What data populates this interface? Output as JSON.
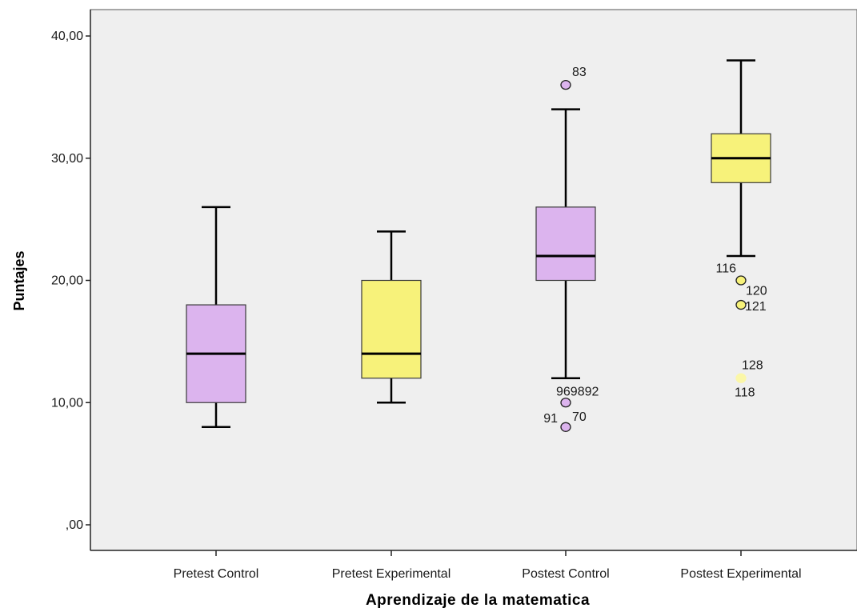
{
  "chart_data": {
    "type": "boxplot",
    "xlabel": "Aprendizaje de la matematica",
    "ylabel": "Puntajes",
    "ylim": [
      0,
      40
    ],
    "y_ticks": [
      {
        "value": 0,
        "label": ",00"
      },
      {
        "value": 10,
        "label": "10,00"
      },
      {
        "value": 20,
        "label": "20,00"
      },
      {
        "value": 30,
        "label": "30,00"
      },
      {
        "value": 40,
        "label": "40,00"
      }
    ],
    "grid": false,
    "plot_background": "#efefef",
    "categories": [
      "Pretest Control",
      "Pretest Experimental",
      "Postest Control",
      "Postest Experimental"
    ],
    "boxes": [
      {
        "category": "Pretest Control",
        "color": "#dcb4ee",
        "whisker_low": 8,
        "q1": 10,
        "median": 14,
        "q3": 18,
        "whisker_high": 26,
        "outliers": []
      },
      {
        "category": "Pretest Experimental",
        "color": "#f7f27a",
        "whisker_low": 10,
        "q1": 12,
        "median": 14,
        "q3": 20,
        "whisker_high": 24,
        "outliers": []
      },
      {
        "category": "Postest Control",
        "color": "#dcb4ee",
        "whisker_low": 12,
        "q1": 20,
        "median": 22,
        "q3": 26,
        "whisker_high": 34,
        "outliers": [
          {
            "value": 36,
            "label": "83",
            "label_pos": "above-right"
          },
          {
            "value": 10,
            "label": "969892",
            "label_pos": "above-right"
          },
          {
            "value": 8,
            "label": "91",
            "label_pos": "left"
          },
          {
            "value": 8,
            "label": "70",
            "label_pos": "above-right"
          }
        ]
      },
      {
        "category": "Postest Experimental",
        "color": "#f7f27a",
        "whisker_low": 22,
        "q1": 28,
        "median": 30,
        "q3": 32,
        "whisker_high": 38,
        "outliers": [
          {
            "value": 20,
            "label": "116",
            "label_pos": "above-left"
          },
          {
            "value": 20,
            "label": "120",
            "label_pos": "below-right"
          },
          {
            "value": 18,
            "label": "121",
            "label_pos": "right"
          },
          {
            "value": 12,
            "label": "128",
            "label_pos": "above-right"
          },
          {
            "value": 12,
            "label": "118",
            "label_pos": "below-right"
          }
        ]
      }
    ]
  }
}
